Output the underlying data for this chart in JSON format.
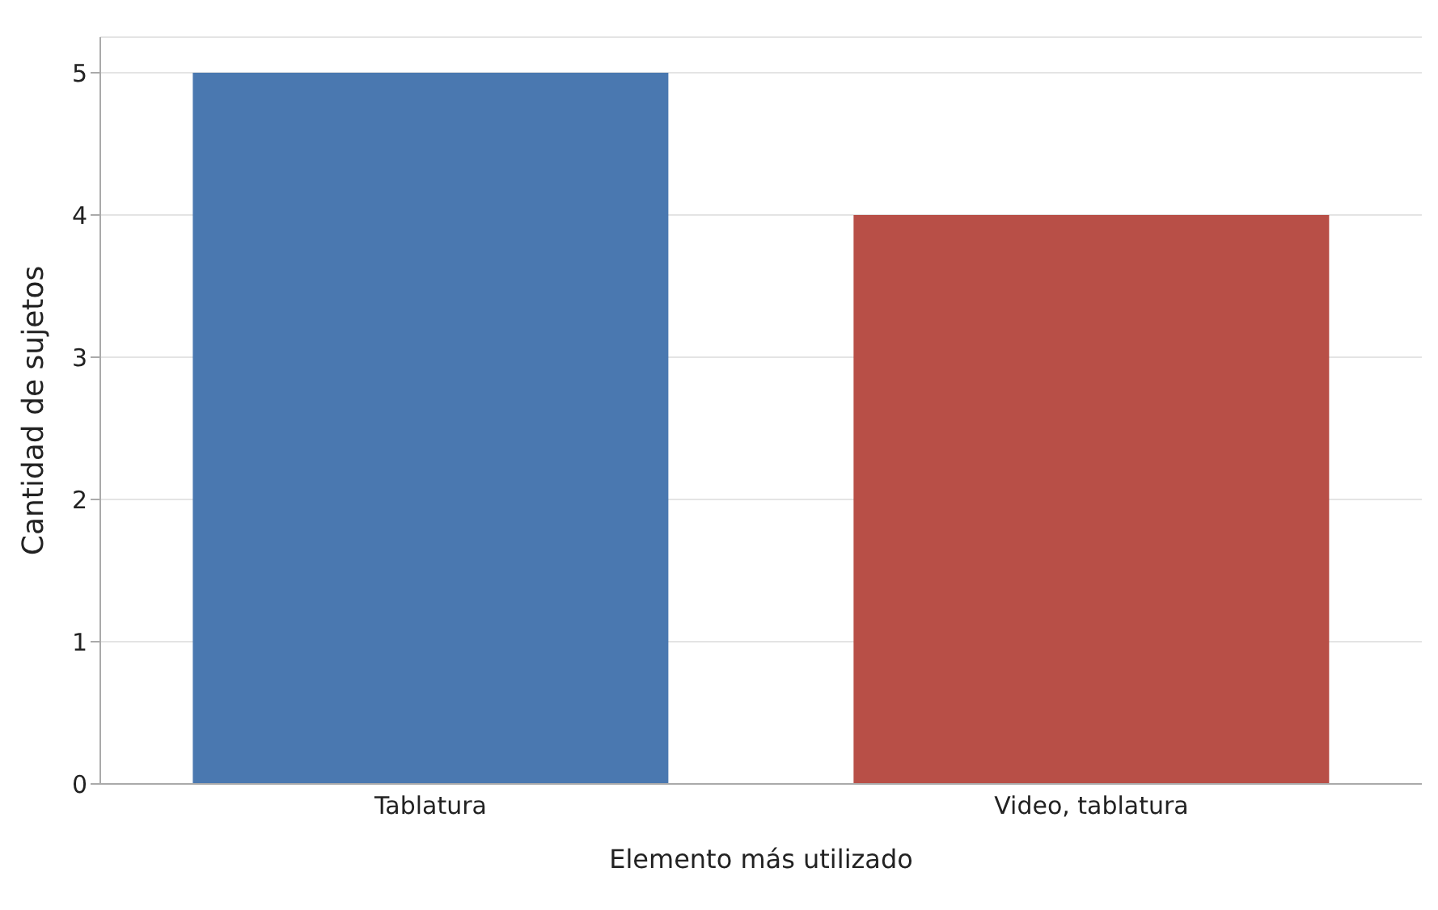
{
  "chart_data": {
    "type": "bar",
    "xlabel": "Elemento más utilizado",
    "ylabel": "Cantidad de sujetos",
    "categories": [
      "Tablatura",
      "Video, tablatura"
    ],
    "values": [
      5,
      4
    ],
    "colors": [
      "#4a78b0",
      "#b84f47"
    ],
    "ylim": [
      0,
      5.25
    ],
    "yticks": [
      0,
      1,
      2,
      3,
      4,
      5
    ],
    "grid": "y"
  }
}
